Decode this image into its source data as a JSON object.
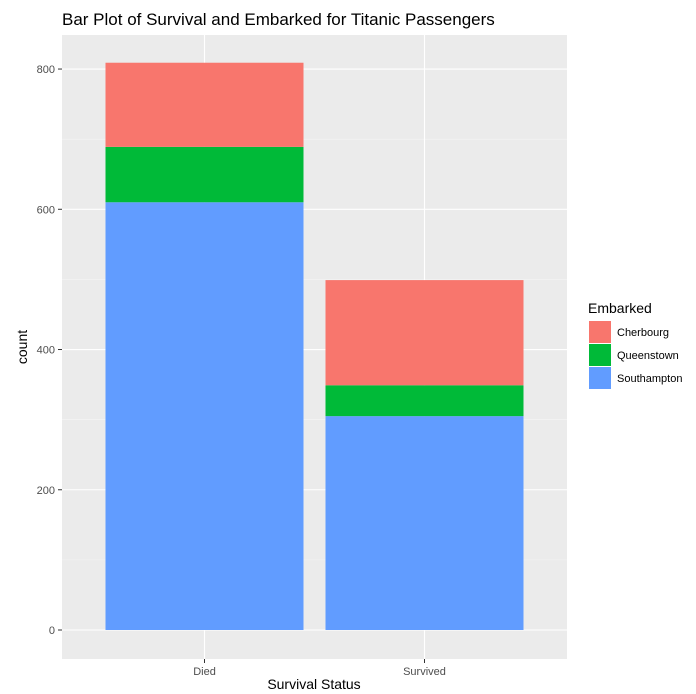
{
  "chart_data": {
    "type": "bar",
    "stacked": true,
    "title": "Bar Plot of Survival and Embarked for Titanic Passengers",
    "xlabel": "Survival Status",
    "ylabel": "count",
    "categories": [
      "Died",
      "Survived"
    ],
    "ylim": [
      0,
      840
    ],
    "yticks": [
      "0",
      "200",
      "400",
      "600",
      "800"
    ],
    "grid": true,
    "legend": {
      "title": "Embarked",
      "position": "right"
    },
    "series": [
      {
        "name": "Southampton",
        "color": "#619CFF",
        "values": [
          610,
          305
        ]
      },
      {
        "name": "Queenstown",
        "color": "#00BA38",
        "values": [
          79,
          44
        ]
      },
      {
        "name": "Cherbourg",
        "color": "#F8766D",
        "values": [
          120,
          150
        ]
      }
    ],
    "legend_order": [
      "Cherbourg",
      "Queenstown",
      "Southampton"
    ]
  }
}
